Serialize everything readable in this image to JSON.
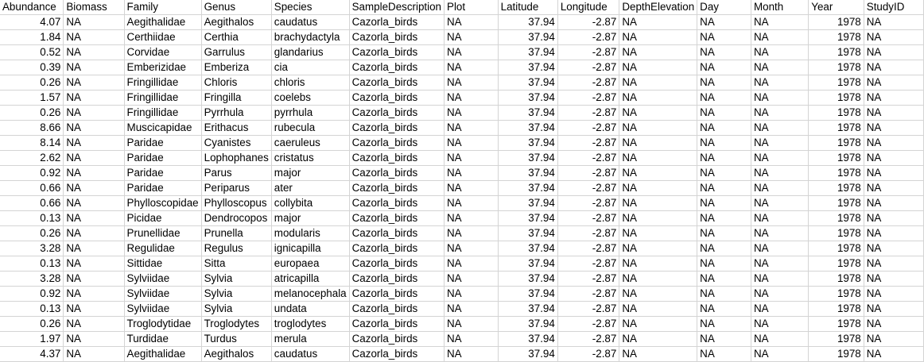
{
  "columns": [
    "Abundance",
    "Biomass",
    "Family",
    "Genus",
    "Species",
    "SampleDescription",
    "Plot",
    "Latitude",
    "Longitude",
    "DepthElevation",
    "Day",
    "Month",
    "Year",
    "StudyID"
  ],
  "rows": [
    [
      "4.07",
      "NA",
      "Aegithalidae",
      "Aegithalos",
      "caudatus",
      "Cazorla_birds",
      "NA",
      "37.94",
      "-2.87",
      "NA",
      "NA",
      "NA",
      "1978",
      "NA"
    ],
    [
      "1.84",
      "NA",
      "Certhiidae",
      "Certhia",
      "brachydactyla",
      "Cazorla_birds",
      "NA",
      "37.94",
      "-2.87",
      "NA",
      "NA",
      "NA",
      "1978",
      "NA"
    ],
    [
      "0.52",
      "NA",
      "Corvidae",
      "Garrulus",
      "glandarius",
      "Cazorla_birds",
      "NA",
      "37.94",
      "-2.87",
      "NA",
      "NA",
      "NA",
      "1978",
      "NA"
    ],
    [
      "0.39",
      "NA",
      "Emberizidae",
      "Emberiza",
      "cia",
      "Cazorla_birds",
      "NA",
      "37.94",
      "-2.87",
      "NA",
      "NA",
      "NA",
      "1978",
      "NA"
    ],
    [
      "0.26",
      "NA",
      "Fringillidae",
      "Chloris",
      "chloris",
      "Cazorla_birds",
      "NA",
      "37.94",
      "-2.87",
      "NA",
      "NA",
      "NA",
      "1978",
      "NA"
    ],
    [
      "1.57",
      "NA",
      "Fringillidae",
      "Fringilla",
      "coelebs",
      "Cazorla_birds",
      "NA",
      "37.94",
      "-2.87",
      "NA",
      "NA",
      "NA",
      "1978",
      "NA"
    ],
    [
      "0.26",
      "NA",
      "Fringillidae",
      "Pyrrhula",
      "pyrrhula",
      "Cazorla_birds",
      "NA",
      "37.94",
      "-2.87",
      "NA",
      "NA",
      "NA",
      "1978",
      "NA"
    ],
    [
      "8.66",
      "NA",
      "Muscicapidae",
      "Erithacus",
      "rubecula",
      "Cazorla_birds",
      "NA",
      "37.94",
      "-2.87",
      "NA",
      "NA",
      "NA",
      "1978",
      "NA"
    ],
    [
      "8.14",
      "NA",
      "Paridae",
      "Cyanistes",
      "caeruleus",
      "Cazorla_birds",
      "NA",
      "37.94",
      "-2.87",
      "NA",
      "NA",
      "NA",
      "1978",
      "NA"
    ],
    [
      "2.62",
      "NA",
      "Paridae",
      "Lophophanes",
      "cristatus",
      "Cazorla_birds",
      "NA",
      "37.94",
      "-2.87",
      "NA",
      "NA",
      "NA",
      "1978",
      "NA"
    ],
    [
      "0.92",
      "NA",
      "Paridae",
      "Parus",
      "major",
      "Cazorla_birds",
      "NA",
      "37.94",
      "-2.87",
      "NA",
      "NA",
      "NA",
      "1978",
      "NA"
    ],
    [
      "0.66",
      "NA",
      "Paridae",
      "Periparus",
      "ater",
      "Cazorla_birds",
      "NA",
      "37.94",
      "-2.87",
      "NA",
      "NA",
      "NA",
      "1978",
      "NA"
    ],
    [
      "0.66",
      "NA",
      "Phylloscopidae",
      "Phylloscopus",
      "collybita",
      "Cazorla_birds",
      "NA",
      "37.94",
      "-2.87",
      "NA",
      "NA",
      "NA",
      "1978",
      "NA"
    ],
    [
      "0.13",
      "NA",
      "Picidae",
      "Dendrocopos",
      "major",
      "Cazorla_birds",
      "NA",
      "37.94",
      "-2.87",
      "NA",
      "NA",
      "NA",
      "1978",
      "NA"
    ],
    [
      "0.26",
      "NA",
      "Prunellidae",
      "Prunella",
      "modularis",
      "Cazorla_birds",
      "NA",
      "37.94",
      "-2.87",
      "NA",
      "NA",
      "NA",
      "1978",
      "NA"
    ],
    [
      "3.28",
      "NA",
      "Regulidae",
      "Regulus",
      "ignicapilla",
      "Cazorla_birds",
      "NA",
      "37.94",
      "-2.87",
      "NA",
      "NA",
      "NA",
      "1978",
      "NA"
    ],
    [
      "0.13",
      "NA",
      "Sittidae",
      "Sitta",
      "europaea",
      "Cazorla_birds",
      "NA",
      "37.94",
      "-2.87",
      "NA",
      "NA",
      "NA",
      "1978",
      "NA"
    ],
    [
      "3.28",
      "NA",
      "Sylviidae",
      "Sylvia",
      "atricapilla",
      "Cazorla_birds",
      "NA",
      "37.94",
      "-2.87",
      "NA",
      "NA",
      "NA",
      "1978",
      "NA"
    ],
    [
      "0.92",
      "NA",
      "Sylviidae",
      "Sylvia",
      "melanocephala",
      "Cazorla_birds",
      "NA",
      "37.94",
      "-2.87",
      "NA",
      "NA",
      "NA",
      "1978",
      "NA"
    ],
    [
      "0.13",
      "NA",
      "Sylviidae",
      "Sylvia",
      "undata",
      "Cazorla_birds",
      "NA",
      "37.94",
      "-2.87",
      "NA",
      "NA",
      "NA",
      "1978",
      "NA"
    ],
    [
      "0.26",
      "NA",
      "Troglodytidae",
      "Troglodytes",
      "troglodytes",
      "Cazorla_birds",
      "NA",
      "37.94",
      "-2.87",
      "NA",
      "NA",
      "NA",
      "1978",
      "NA"
    ],
    [
      "1.97",
      "NA",
      "Turdidae",
      "Turdus",
      "merula",
      "Cazorla_birds",
      "NA",
      "37.94",
      "-2.87",
      "NA",
      "NA",
      "NA",
      "1978",
      "NA"
    ],
    [
      "4.37",
      "NA",
      "Aegithalidae",
      "Aegithalos",
      "caudatus",
      "Cazorla_birds",
      "NA",
      "37.94",
      "-2.87",
      "NA",
      "NA",
      "NA",
      "1978",
      "NA"
    ]
  ]
}
